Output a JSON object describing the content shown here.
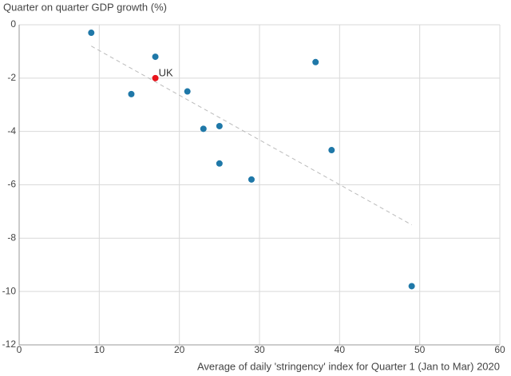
{
  "chart_data": {
    "type": "scatter",
    "y_label": "Quarter on quarter GDP growth (%)",
    "x_label": "Average of daily 'stringency' index for Quarter 1 (Jan to Mar) 2020",
    "x": [
      9,
      17,
      37,
      14,
      21,
      23,
      25,
      39,
      25,
      29,
      49
    ],
    "y": [
      -0.3,
      -1.2,
      -1.4,
      -2.6,
      -2.5,
      -3.9,
      -3.8,
      -4.7,
      -5.2,
      -5.8,
      -9.8
    ],
    "color": "#1f78a8",
    "highlight": {
      "label": "UK",
      "x": 17,
      "y": -2.0,
      "color": "#e8141c"
    },
    "trendline": {
      "x": [
        9,
        49
      ],
      "y": [
        -0.8,
        -7.5
      ],
      "color": "#bbbbbb"
    },
    "xlim": [
      0,
      60
    ],
    "xticks": [
      0,
      10,
      20,
      30,
      40,
      50,
      60
    ],
    "ylim": [
      -12,
      0
    ],
    "yticks": [
      0,
      -2,
      -4,
      -6,
      -8,
      -10,
      -12
    ],
    "grid": true
  }
}
